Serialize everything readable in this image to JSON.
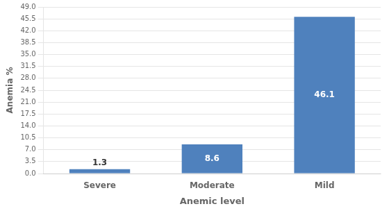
{
  "chart_data": {
    "type": "bar",
    "categories": [
      "Severe",
      "Moderate",
      "Mild"
    ],
    "values": [
      1.3,
      8.6,
      46.1
    ],
    "color": "#4F81BD",
    "xlabel": "Anemic level",
    "ylabel": "Anemia %",
    "ylim": [
      0,
      49.0
    ],
    "yticks": [
      {
        "value": 0.0,
        "label": "0.0"
      },
      3.5,
      {
        "value": 7.0,
        "label": "7.0"
      },
      10.5,
      {
        "value": 14.0,
        "label": "14.0"
      },
      17.5,
      {
        "value": 21.0,
        "label": "21.0"
      },
      24.5,
      {
        "value": 28.0,
        "label": "28.0"
      },
      31.5,
      {
        "value": 35.0,
        "label": "35.0"
      },
      38.5,
      {
        "value": 42.0,
        "label": "42.0"
      },
      45.5,
      {
        "value": 49.0,
        "label": "49.0"
      }
    ],
    "grid": true,
    "data_labels": true
  }
}
